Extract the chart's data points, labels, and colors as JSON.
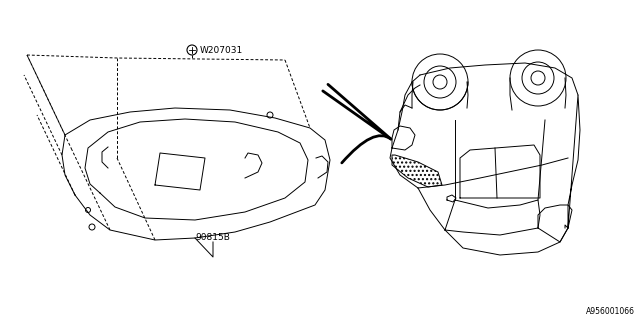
{
  "bg_color": "#ffffff",
  "line_color": "#000000",
  "part_label_1": "90815B",
  "part_label_2": "W207031",
  "diagram_id": "A956001066",
  "fig_width": 6.4,
  "fig_height": 3.2,
  "dpi": 100
}
